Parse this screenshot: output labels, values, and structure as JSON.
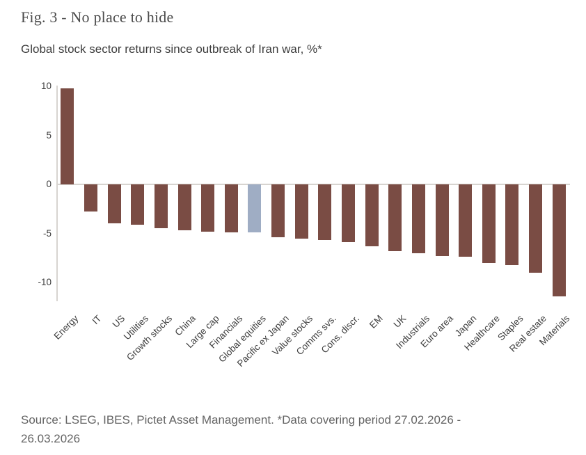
{
  "figure": {
    "title": "Fig. 3 - No place to hide",
    "subtitle": "Global stock sector returns since outbreak of Iran war, %*",
    "source_lines": [
      "Source: LSEG, IBES, Pictet Asset Management. *Data covering period 27.02.2026 -",
      "26.03.2026"
    ]
  },
  "colors": {
    "bar": "#7a4c44",
    "highlight_bar": "#9fadc4",
    "axis_line": "#d7d4d0",
    "tick_text": "#3d3d3d"
  },
  "chart_data": {
    "type": "bar",
    "title": "Fig. 3 - No place to hide",
    "subtitle": "Global stock sector returns since outbreak of Iran war, %*",
    "categories": [
      "Energy",
      "IT",
      "US",
      "Utilities",
      "Growth stocks",
      "China",
      "Large cap",
      "Financials",
      "Global equities",
      "Pacific ex Japan",
      "Value stocks",
      "Comms svs.",
      "Cons. discr.",
      "EM",
      "UK",
      "Industrials",
      "Euro area",
      "Japan",
      "Healthcare",
      "Staples",
      "Real estate",
      "Materials"
    ],
    "values": [
      9.8,
      -2.8,
      -4.0,
      -4.1,
      -4.5,
      -4.7,
      -4.8,
      -4.9,
      -4.9,
      -5.4,
      -5.5,
      -5.7,
      -5.9,
      -6.3,
      -6.8,
      -7.0,
      -7.3,
      -7.4,
      -8.0,
      -8.2,
      -9.0,
      -11.4
    ],
    "highlight_category": "Global equities",
    "bar_color": "#7a4c44",
    "highlight_color": "#9fadc4",
    "yticks": [
      10,
      5,
      0,
      -5,
      -10
    ],
    "ylabel": "",
    "xlabel": "",
    "ylim": [
      -12,
      10.1
    ],
    "grid": false,
    "legend": "none",
    "x_tick_rotation_deg": 45
  }
}
